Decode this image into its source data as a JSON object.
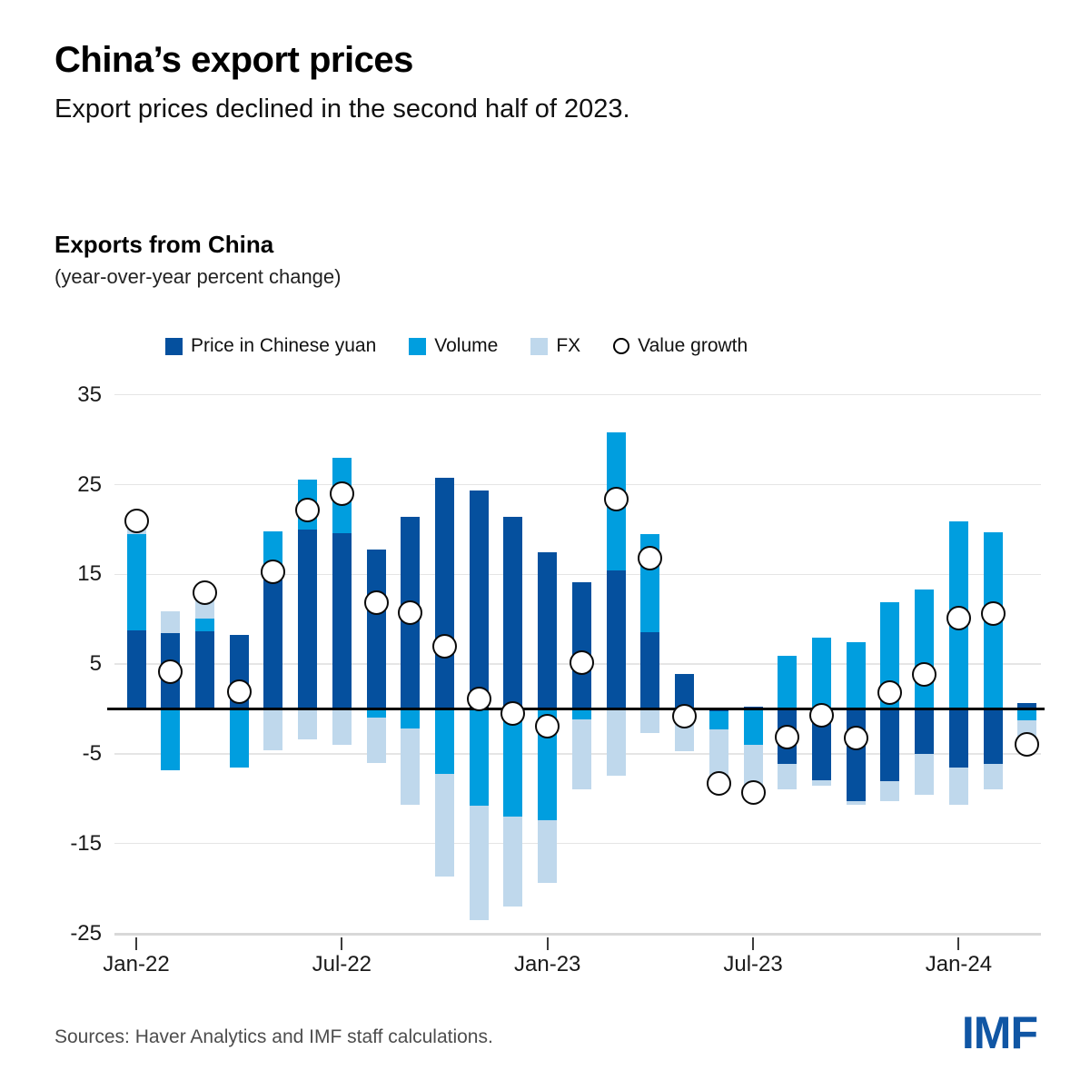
{
  "header": {
    "title": "China’s export prices",
    "subtitle": "Export prices declined in the second half of 2023."
  },
  "panel": {
    "heading": "Exports from China",
    "unit_note": "(year-over-year percent change)"
  },
  "legend": {
    "items": [
      {
        "label": "Price in Chinese yuan",
        "swatch": "square",
        "color": "#05509E"
      },
      {
        "label": "Volume",
        "swatch": "square",
        "color": "#009EDF"
      },
      {
        "label": "FX",
        "swatch": "square",
        "color": "#BFD8EC"
      },
      {
        "label": "Value growth",
        "swatch": "circle",
        "color": "#FFFFFF"
      }
    ]
  },
  "chart_data": {
    "type": "bar",
    "subtype": "stacked-bars-with-scatter-overlay",
    "title": "Exports from China",
    "ylabel": "year-over-year percent change",
    "categories": [
      "Jan-22",
      "Feb-22",
      "Mar-22",
      "Apr-22",
      "May-22",
      "Jun-22",
      "Jul-22",
      "Aug-22",
      "Sep-22",
      "Oct-22",
      "Nov-22",
      "Dec-22",
      "Jan-23",
      "Feb-23",
      "Mar-23",
      "Apr-23",
      "May-23",
      "Jun-23",
      "Jul-23",
      "Aug-23",
      "Sep-23",
      "Oct-23",
      "Nov-23",
      "Dec-23",
      "Jan-24",
      "Feb-24",
      "Mar-24"
    ],
    "series": [
      {
        "name": "Price in Chinese yuan",
        "color": "#05509E",
        "values": [
          8.8,
          8.5,
          8.7,
          8.2,
          14.5,
          20.0,
          19.6,
          17.8,
          21.4,
          25.8,
          24.3,
          21.4,
          17.5,
          14.1,
          15.4,
          8.6,
          3.9,
          -0.3,
          0.3,
          -6.1,
          -7.9,
          -10.3,
          -8.0,
          -5.0,
          -6.5,
          -6.1,
          0.7
        ]
      },
      {
        "name": "Volume",
        "color": "#009EDF",
        "values": [
          10.7,
          -6.8,
          1.4,
          -6.5,
          5.3,
          5.6,
          8.4,
          -1.0,
          -2.2,
          -7.2,
          -10.8,
          -12.0,
          -12.4,
          -1.2,
          15.4,
          10.9,
          0,
          -2.0,
          -4.0,
          5.9,
          7.9,
          7.4,
          11.9,
          13.3,
          20.9,
          19.7,
          -1.3
        ]
      },
      {
        "name": "FX",
        "color": "#BFD8EC",
        "values": [
          1.0,
          2.4,
          2.3,
          0,
          -4.6,
          -3.4,
          -4.0,
          -5.0,
          -8.5,
          -11.5,
          -12.7,
          -10.0,
          -7.0,
          -7.8,
          -7.4,
          -2.7,
          -4.7,
          -6.0,
          -5.6,
          -2.9,
          -0.7,
          -0.4,
          -2.3,
          -4.6,
          -4.2,
          -2.9,
          -3.4
        ]
      }
    ],
    "scatter": {
      "name": "Value growth",
      "marker": "white-circle-black-outline",
      "values": [
        21.0,
        4.2,
        13.0,
        1.9,
        15.3,
        22.2,
        24.0,
        11.8,
        10.7,
        7.0,
        1.1,
        -0.5,
        -1.9,
        5.2,
        23.4,
        16.8,
        -0.8,
        -8.3,
        -9.3,
        -3.1,
        -0.7,
        -3.2,
        1.8,
        3.8,
        10.1,
        10.6,
        -3.9
      ]
    },
    "ylim": [
      -25,
      35
    ],
    "yticks": [
      35,
      25,
      15,
      5,
      -5,
      -15,
      -25
    ],
    "x_tick_labels": [
      "Jan-22",
      "Jul-22",
      "Jan-23",
      "Jul-23",
      "Jan-24"
    ],
    "x_tick_indices": [
      0,
      6,
      12,
      18,
      24
    ],
    "grid": "horizontal",
    "zero_line": true,
    "legend_position": "top"
  },
  "footer": {
    "sources": "Sources: Haver Analytics and IMF staff calculations.",
    "logo": "IMF",
    "logo_color": "#1056A4"
  }
}
